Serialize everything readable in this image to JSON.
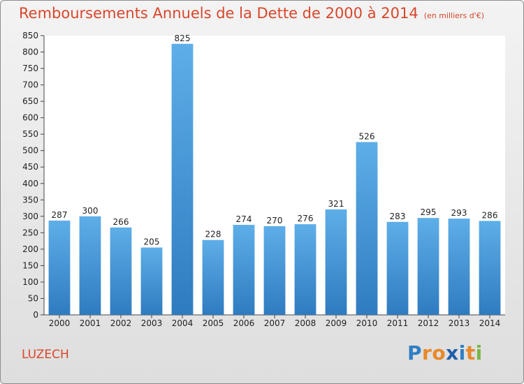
{
  "title": "Remboursements Annuels de la Dette de 2000 à 2014",
  "subtitle": "(en milliers d'€)",
  "location": "LUZECH",
  "brand": {
    "letters": [
      "P",
      "r",
      "o",
      "x",
      "i",
      "t",
      "i"
    ],
    "colors": [
      "#2f7fc4",
      "#e8892a",
      "#e8892a",
      "#1f5fa8",
      "#2f7fc4",
      "#e8892a",
      "#7ab648"
    ]
  },
  "colors": {
    "title": "#d9462a",
    "bar_top": "#5eaee8",
    "bar_bottom": "#2f7bc0"
  },
  "chart_data": {
    "type": "bar",
    "categories": [
      "2000",
      "2001",
      "2002",
      "2003",
      "2004",
      "2005",
      "2006",
      "2007",
      "2008",
      "2009",
      "2010",
      "2011",
      "2012",
      "2013",
      "2014"
    ],
    "values": [
      287,
      300,
      266,
      205,
      825,
      228,
      274,
      270,
      276,
      321,
      526,
      283,
      295,
      293,
      286
    ],
    "ylim": [
      0,
      850
    ],
    "yticks": [
      0,
      50,
      100,
      150,
      200,
      250,
      300,
      350,
      400,
      450,
      500,
      550,
      600,
      650,
      700,
      750,
      800,
      850
    ],
    "grid": false,
    "show_value_labels": true
  }
}
